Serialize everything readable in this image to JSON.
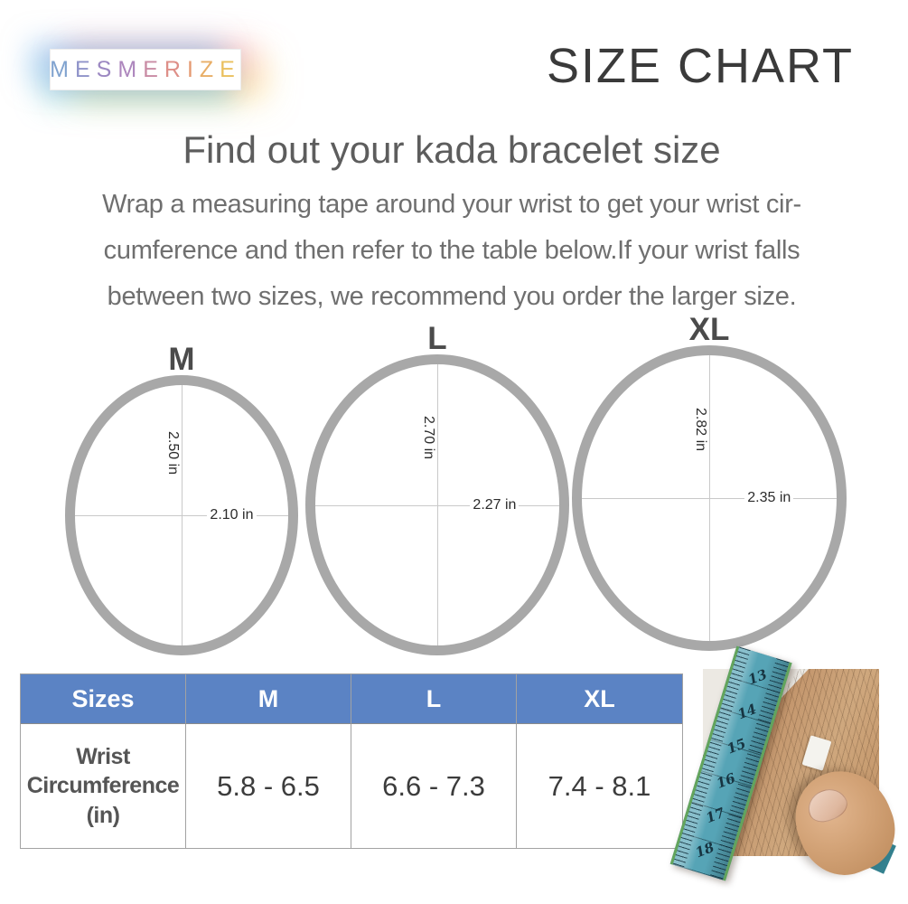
{
  "header": {
    "logo": {
      "letters": [
        "M",
        "E",
        "S",
        "M",
        "E",
        "R",
        "I",
        "Z",
        "E"
      ],
      "letter_colors": [
        "#81a3cf",
        "#8f93c9",
        "#9c88c2",
        "#ad86bd",
        "#c98ba4",
        "#de8f88",
        "#e49a71",
        "#e8ae67",
        "#eac05e"
      ]
    },
    "title": "SIZE CHART"
  },
  "intro": {
    "heading": "Find out your kada bracelet size",
    "lines": [
      "Wrap a measuring tape around your wrist to get your wrist cir-",
      "cumference and then refer to the table below.If your wrist falls",
      "between two sizes, we recommend you order the larger size."
    ]
  },
  "diagrams": [
    {
      "label": "M",
      "vertical_diameter": "2.50 in",
      "horizontal_diameter": "2.10 in"
    },
    {
      "label": "L",
      "vertical_diameter": "2.70 in",
      "horizontal_diameter": "2.27 in"
    },
    {
      "label": "XL",
      "vertical_diameter": "2.82 in",
      "horizontal_diameter": "2.35 in"
    }
  ],
  "sizes_table": {
    "headers": [
      "Sizes",
      "M",
      "L",
      "XL"
    ],
    "row_label": "Wrist Circumference (in)",
    "values": [
      "5.8 - 6.5",
      "6.6 - 7.3",
      "7.4 - 8.1"
    ]
  },
  "photo": {
    "tape_numbers": [
      "13",
      "14",
      "15",
      "16",
      "17",
      "18"
    ]
  },
  "colors": {
    "table_header_blue": "#5b83c4",
    "ring_gray": "#a8a8a8",
    "crosshair_gray": "#c9c9c9",
    "title_gray": "#3a3a3a",
    "body_text_gray": "#6f6f6f",
    "tape_teal": "#56a4b6"
  }
}
